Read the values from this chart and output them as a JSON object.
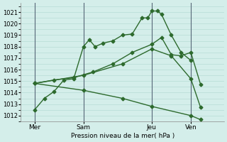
{
  "background_color": "#d4eeea",
  "grid_color": "#b0d8d0",
  "line_color": "#2d6a2d",
  "ylabel": "Pression niveau de la mer( hPa )",
  "ylim": [
    1011.5,
    1021.8
  ],
  "xlim": [
    -0.2,
    10.2
  ],
  "yticks": [
    1012,
    1013,
    1014,
    1015,
    1016,
    1017,
    1018,
    1019,
    1020,
    1021
  ],
  "xtick_labels": [
    "Mer",
    "Sam",
    "Jeu",
    "Ven"
  ],
  "xtick_positions": [
    0.5,
    3.0,
    6.5,
    8.5
  ],
  "vlines_x": [
    0.5,
    3.0,
    6.5,
    8.5
  ],
  "vline_color": "#556677",
  "lines": [
    {
      "x": [
        0.5,
        1.0,
        1.5,
        2.0,
        2.5,
        3.0,
        3.3,
        3.6,
        4.0,
        4.5,
        5.0,
        5.5,
        6.0,
        6.3,
        6.5,
        6.8,
        7.0,
        7.5,
        8.0,
        8.5
      ],
      "y": [
        1012.5,
        1013.5,
        1014.1,
        1015.1,
        1015.2,
        1018.0,
        1018.6,
        1018.0,
        1018.3,
        1018.5,
        1019.0,
        1019.1,
        1020.5,
        1020.5,
        1021.1,
        1021.1,
        1020.8,
        1019.0,
        1017.5,
        1016.8
      ],
      "marker": "D",
      "markersize": 2.5,
      "lw": 1.0
    },
    {
      "x": [
        0.5,
        1.5,
        2.5,
        3.5,
        4.5,
        5.5,
        6.5,
        7.0,
        7.5,
        8.0,
        8.5,
        9.0
      ],
      "y": [
        1014.8,
        1015.1,
        1015.3,
        1015.8,
        1016.5,
        1017.5,
        1018.2,
        1018.8,
        1017.3,
        1017.2,
        1017.5,
        1014.7
      ],
      "marker": "D",
      "markersize": 2.5,
      "lw": 1.0
    },
    {
      "x": [
        0.5,
        3.0,
        5.0,
        6.5,
        7.5,
        8.5,
        9.0
      ],
      "y": [
        1014.8,
        1015.5,
        1016.5,
        1017.8,
        1017.2,
        1015.2,
        1012.7
      ],
      "marker": "D",
      "markersize": 2.5,
      "lw": 1.0
    },
    {
      "x": [
        0.5,
        3.0,
        5.0,
        6.5,
        8.5,
        9.0
      ],
      "y": [
        1014.8,
        1014.2,
        1013.5,
        1012.8,
        1012.0,
        1011.65
      ],
      "marker": "D",
      "markersize": 2.5,
      "lw": 1.0
    }
  ]
}
